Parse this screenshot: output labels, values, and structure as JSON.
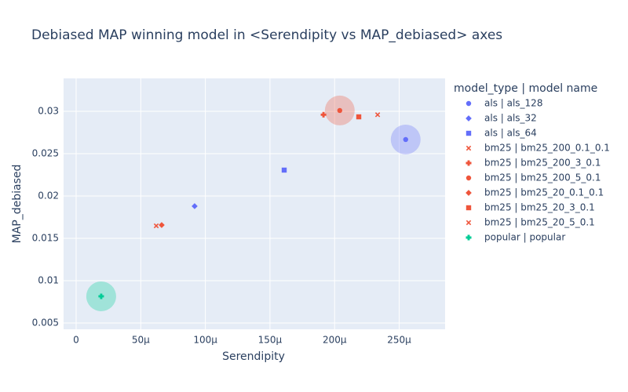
{
  "chart_data": {
    "type": "scatter",
    "title": "Debiased MAP winning model in <Serendipity vs MAP_debiased> axes",
    "x_label": "Serendipity",
    "y_label": "MAP_debiased",
    "legend_title": "model_type | model name",
    "xlim": [
      -9.7e-06,
      0.0002855
    ],
    "ylim": [
      0.00426,
      0.03389
    ],
    "xticks": [
      0,
      {
        "value": 5e-05,
        "label": "50μ"
      },
      {
        "value": 0.0001,
        "label": "100μ"
      },
      {
        "value": 0.00015,
        "label": "150μ"
      },
      {
        "value": 0.0002,
        "label": "200μ"
      },
      {
        "value": 0.00025,
        "label": "250μ"
      }
    ],
    "yticks": [
      0.005,
      0.01,
      0.015,
      0.02,
      0.025,
      0.03
    ],
    "grid": true,
    "series": [
      {
        "name": "als | als_128",
        "color": "#636efa",
        "symbol": "circle",
        "highlighted": true,
        "x": [
          0.000255
        ],
        "values": [
          0.02667
        ]
      },
      {
        "name": "als | als_32",
        "color": "#636efa",
        "symbol": "diamond",
        "x": [
          9.17e-05
        ],
        "values": [
          0.0188
        ]
      },
      {
        "name": "als | als_64",
        "color": "#636efa",
        "symbol": "square",
        "x": [
          0.000161
        ],
        "values": [
          0.02306
        ]
      },
      {
        "name": "bm25 | bm25_200_0.1_0.1",
        "color": "#ef553b",
        "symbol": "x",
        "x": [
          6.2e-05
        ],
        "values": [
          0.01648
        ]
      },
      {
        "name": "bm25 | bm25_200_3_0.1",
        "color": "#ef553b",
        "symbol": "cross",
        "x": [
          0.0001914
        ],
        "values": [
          0.0296
        ]
      },
      {
        "name": "bm25 | bm25_200_5_0.1",
        "color": "#ef553b",
        "symbol": "circle",
        "highlighted": true,
        "x": [
          0.000204
        ],
        "values": [
          0.0301
        ]
      },
      {
        "name": "bm25 | bm25_20_0.1_0.1",
        "color": "#ef553b",
        "symbol": "diamond",
        "x": [
          6.62e-05
        ],
        "values": [
          0.01657
        ]
      },
      {
        "name": "bm25 | bm25_20_3_0.1",
        "color": "#ef553b",
        "symbol": "square",
        "x": [
          0.0002187
        ],
        "values": [
          0.02935
        ]
      },
      {
        "name": "bm25 | bm25_20_5_0.1",
        "color": "#ef553b",
        "symbol": "x",
        "x": [
          0.0002333
        ],
        "values": [
          0.0296
        ]
      },
      {
        "name": "popular | popular",
        "color": "#00cc96",
        "symbol": "cross",
        "highlighted": true,
        "x": [
          1.94e-05
        ],
        "values": [
          0.00815
        ]
      }
    ]
  }
}
